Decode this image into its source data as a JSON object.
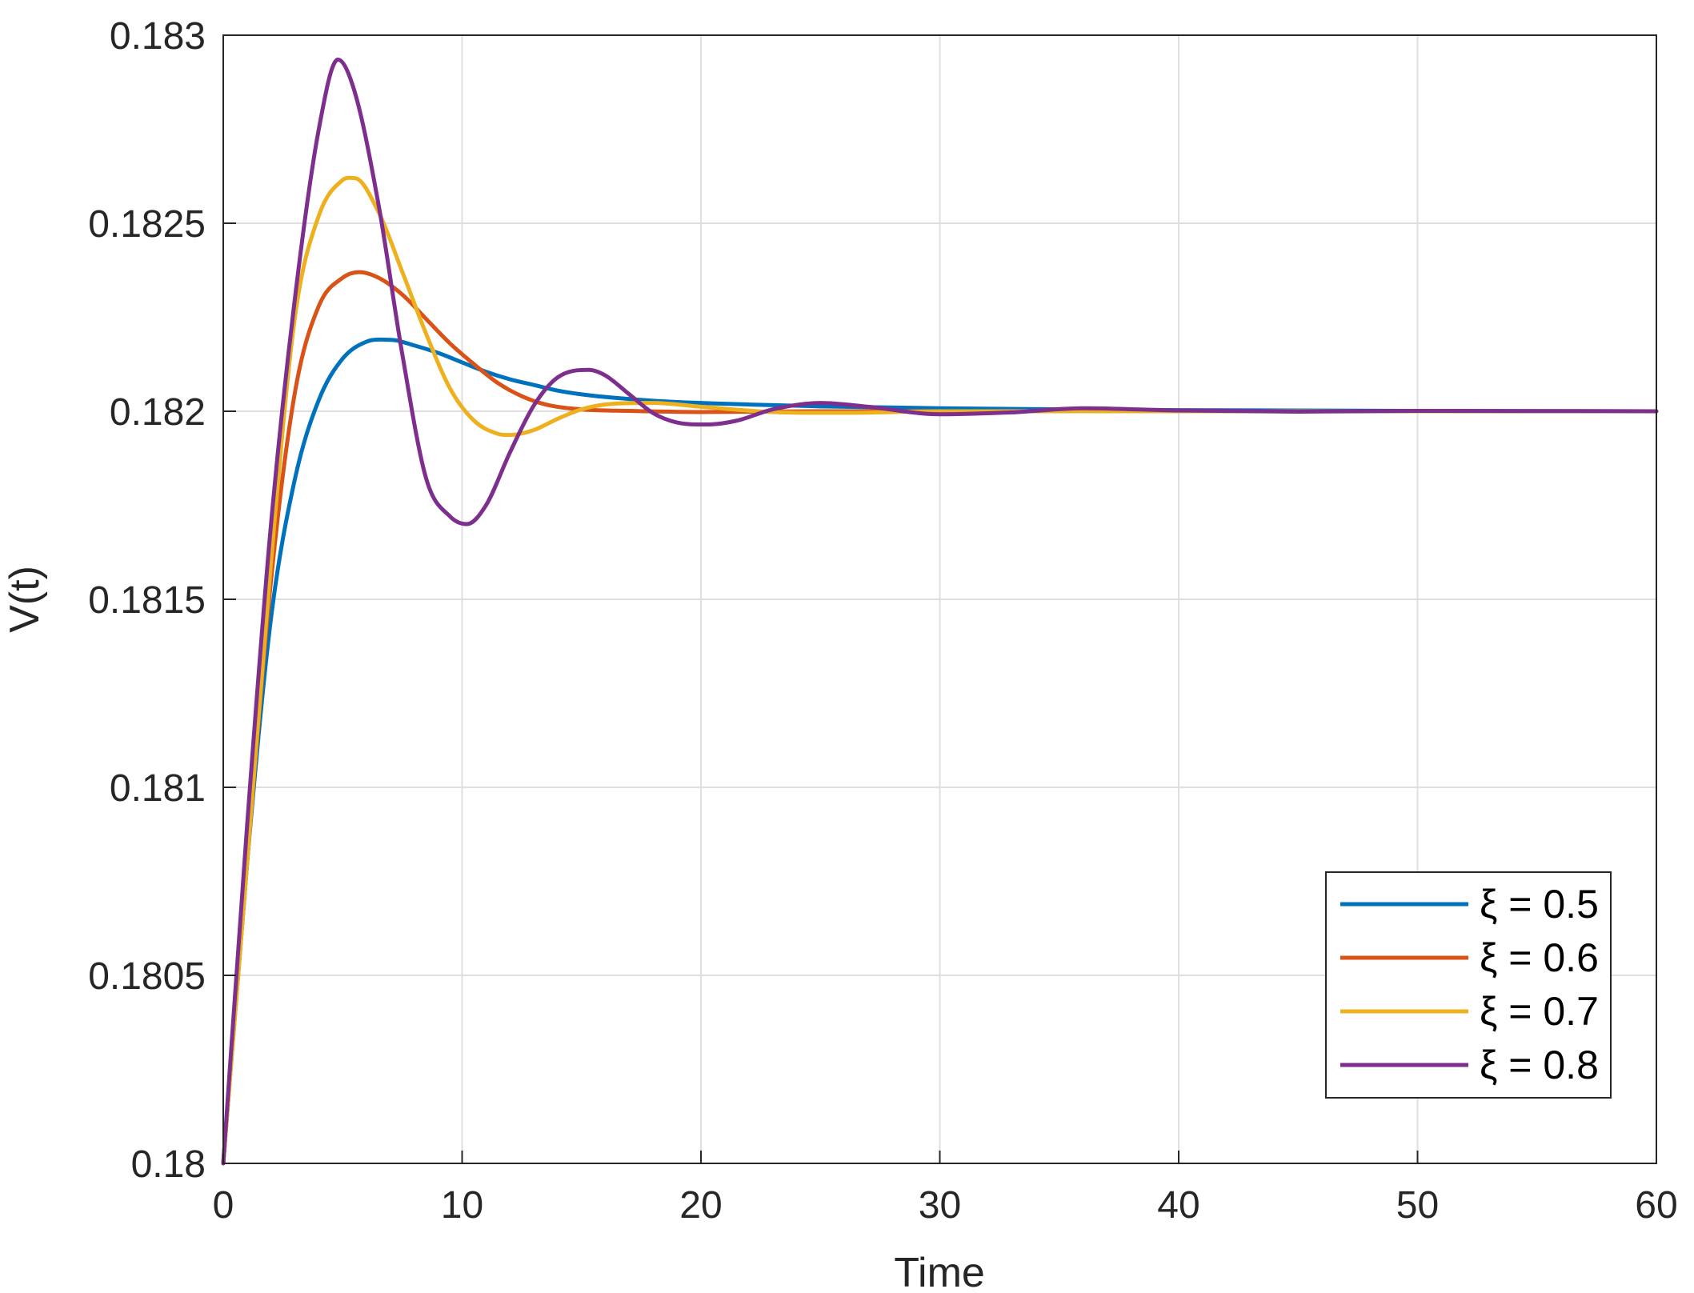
{
  "chart_data": {
    "type": "line",
    "title": "",
    "xlabel": "Time",
    "ylabel": "V(t)",
    "xlim": [
      0,
      60
    ],
    "ylim": [
      0.18,
      0.183
    ],
    "xticks": [
      0,
      10,
      20,
      30,
      40,
      50,
      60
    ],
    "xtick_labels": [
      "0",
      "10",
      "20",
      "30",
      "40",
      "50",
      "60"
    ],
    "yticks": [
      0.18,
      0.1805,
      0.181,
      0.1815,
      0.182,
      0.1825,
      0.183
    ],
    "ytick_labels": [
      "0.18",
      "0.1805",
      "0.181",
      "0.1815",
      "0.182",
      "0.1825",
      "0.183"
    ],
    "grid": true,
    "legend_position": "bottom-right",
    "series": [
      {
        "name": "ξ = 0.5",
        "color": "#0072BD",
        "x": [
          0,
          1,
          2,
          3,
          4,
          5,
          6,
          7,
          8,
          9,
          10,
          11,
          12,
          13,
          14,
          15,
          16,
          18,
          20,
          22,
          25,
          30,
          35,
          40,
          50,
          60
        ],
        "y": [
          0.18,
          0.1808,
          0.18145,
          0.18182,
          0.18203,
          0.18214,
          0.182185,
          0.18219,
          0.182175,
          0.182155,
          0.18213,
          0.182105,
          0.182085,
          0.18207,
          0.182055,
          0.182045,
          0.182038,
          0.182028,
          0.182022,
          0.182018,
          0.182013,
          0.182008,
          0.182005,
          0.182003,
          0.182001,
          0.182
        ]
      },
      {
        "name": "ξ = 0.6",
        "color": "#D95319",
        "x": [
          0,
          1,
          2,
          3,
          4,
          5,
          5.7,
          6.5,
          7.5,
          8.5,
          9.5,
          10.5,
          11.5,
          12.5,
          13.5,
          15,
          17,
          20,
          25,
          30,
          40,
          60
        ],
        "y": [
          0.18,
          0.1808,
          0.18155,
          0.18205,
          0.18228,
          0.182355,
          0.18237,
          0.182355,
          0.18231,
          0.182245,
          0.18218,
          0.182125,
          0.182075,
          0.18204,
          0.182018,
          0.182005,
          0.182001,
          0.181998,
          0.182,
          0.182,
          0.182,
          0.182
        ]
      },
      {
        "name": "ξ = 0.7",
        "color": "#EDB120",
        "x": [
          0,
          1,
          2,
          3,
          4,
          5,
          5.5,
          6.5,
          7.5,
          8.5,
          9.5,
          10.5,
          11.5,
          12,
          13,
          14,
          15,
          16,
          18,
          20,
          23,
          26,
          30,
          40,
          60
        ],
        "y": [
          0.18,
          0.1808,
          0.1816,
          0.18225,
          0.18252,
          0.182615,
          0.18262,
          0.18253,
          0.18237,
          0.182205,
          0.18206,
          0.181975,
          0.18194,
          0.181937,
          0.18195,
          0.18198,
          0.182005,
          0.182018,
          0.182022,
          0.182012,
          0.181998,
          0.181996,
          0.182,
          0.182,
          0.182
        ]
      },
      {
        "name": "ξ = 0.8",
        "color": "#7E2F8E",
        "x": [
          0,
          1,
          2,
          3,
          4,
          4.8,
          5.5,
          6.5,
          7.5,
          8.5,
          9.5,
          10.2,
          11,
          12,
          13,
          14,
          15.3,
          16,
          17,
          18,
          19,
          20.3,
          21.5,
          23,
          25,
          27,
          30,
          33,
          36,
          40,
          45,
          50,
          60
        ],
        "y": [
          0.18,
          0.1809,
          0.1817,
          0.1823,
          0.18275,
          0.182935,
          0.18285,
          0.18255,
          0.18215,
          0.18182,
          0.18172,
          0.1817,
          0.18175,
          0.18189,
          0.182015,
          0.18209,
          0.18211,
          0.182095,
          0.182045,
          0.181995,
          0.18197,
          0.181965,
          0.181975,
          0.182005,
          0.182022,
          0.182012,
          0.181992,
          0.181997,
          0.182008,
          0.182002,
          0.181999,
          0.182001,
          0.182
        ]
      }
    ]
  }
}
